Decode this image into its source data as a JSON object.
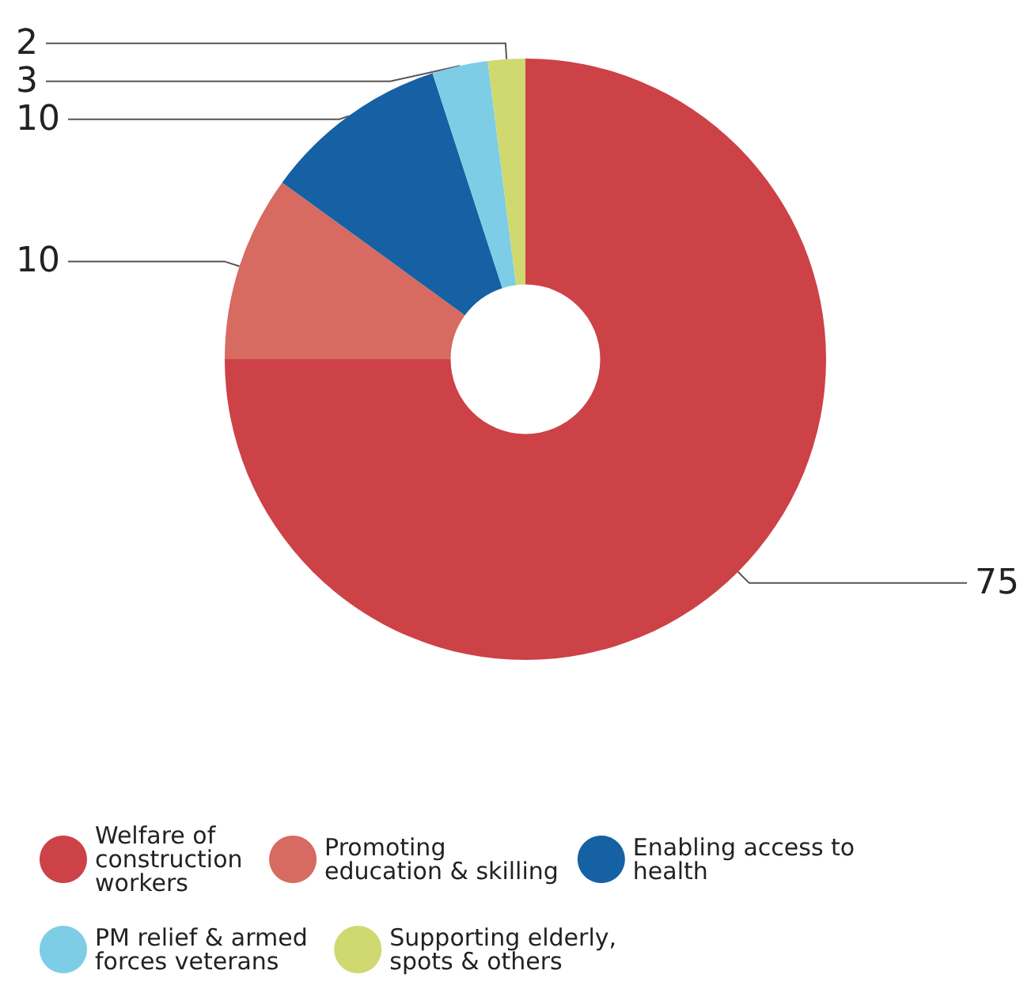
{
  "chart_data": {
    "type": "donut",
    "categories": [
      "Welfare of construction workers",
      "Promoting education & skilling",
      "Enabling access to health",
      "PM relief & armed forces veterans",
      "Supporting elderly, spots & others"
    ],
    "values": [
      75,
      10,
      10,
      3,
      2
    ],
    "colors": [
      "#cc4247",
      "#d76a61",
      "#1661a3",
      "#7ecde6",
      "#cfd96f"
    ],
    "data_labels": true,
    "legend": "bottom"
  }
}
